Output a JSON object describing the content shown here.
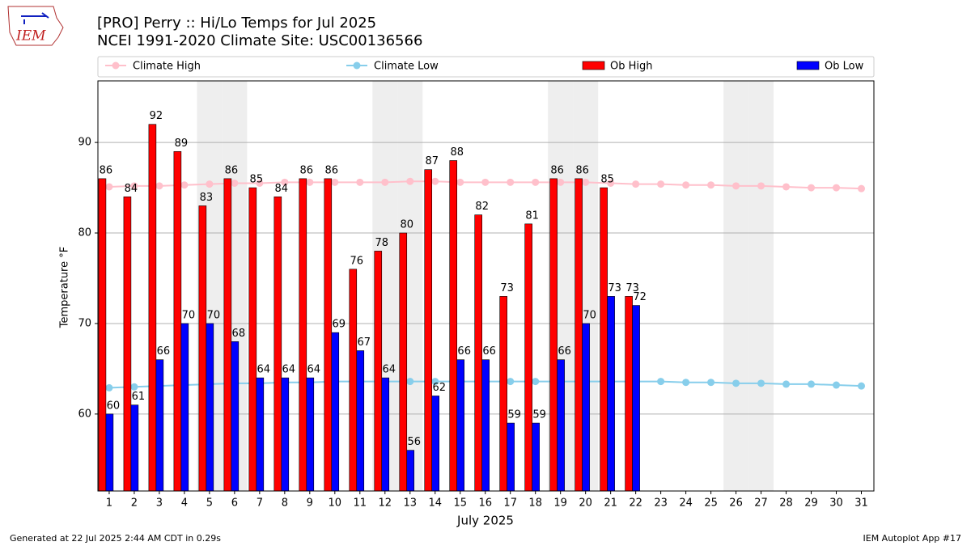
{
  "chart_data": {
    "type": "bar",
    "title": "[PRO] Perry :: Hi/Lo Temps for Jul 2025",
    "subtitle": "NCEI 1991-2020 Climate Site: USC00136566",
    "logo": "IEM",
    "ylabel": "Temperature °F",
    "xlabel": "July 2025",
    "footer_left": "Generated at 22 Jul 2025 2:44 AM CDT in 0.29s",
    "footer_right": "IEM Autoplot App #17",
    "x": [
      1,
      2,
      3,
      4,
      5,
      6,
      7,
      8,
      9,
      10,
      11,
      12,
      13,
      14,
      15,
      16,
      17,
      18,
      19,
      20,
      21,
      22,
      23,
      24,
      25,
      26,
      27,
      28,
      29,
      30,
      31
    ],
    "xlim": [
      0.55,
      31.5
    ],
    "ylim": [
      51.5,
      96.8
    ],
    "yticks": [
      60,
      70,
      80,
      90
    ],
    "grid": true,
    "highlight_days": [
      5,
      6,
      12,
      13,
      19,
      20,
      26,
      27
    ],
    "series": [
      {
        "name": "Climate High",
        "type": "line",
        "color": "#ffc0cb",
        "values": [
          85.1,
          85.2,
          85.2,
          85.3,
          85.4,
          85.5,
          85.5,
          85.6,
          85.6,
          85.6,
          85.6,
          85.6,
          85.7,
          85.7,
          85.6,
          85.6,
          85.6,
          85.6,
          85.6,
          85.6,
          85.5,
          85.4,
          85.4,
          85.3,
          85.3,
          85.2,
          85.2,
          85.1,
          85.0,
          85.0,
          84.9
        ]
      },
      {
        "name": "Climate Low",
        "type": "line",
        "color": "#87ceeb",
        "values": [
          62.9,
          63.0,
          63.1,
          63.2,
          63.3,
          63.4,
          63.4,
          63.5,
          63.5,
          63.6,
          63.6,
          63.6,
          63.6,
          63.6,
          63.6,
          63.6,
          63.6,
          63.6,
          63.6,
          63.6,
          63.6,
          63.6,
          63.6,
          63.5,
          63.5,
          63.4,
          63.4,
          63.3,
          63.3,
          63.2,
          63.1
        ]
      },
      {
        "name": "Ob High",
        "type": "bar",
        "color": "#ff0000",
        "values": [
          86,
          84,
          92,
          89,
          83,
          86,
          85,
          84,
          86,
          86,
          76,
          78,
          80,
          87,
          88,
          82,
          73,
          81,
          86,
          86,
          85,
          73,
          null,
          null,
          null,
          null,
          null,
          null,
          null,
          null,
          null
        ]
      },
      {
        "name": "Ob Low",
        "type": "bar",
        "color": "#0000ff",
        "values": [
          60,
          61,
          66,
          70,
          70,
          68,
          64,
          64,
          64,
          69,
          67,
          64,
          56,
          62,
          66,
          66,
          59,
          59,
          66,
          70,
          73,
          72,
          null,
          null,
          null,
          null,
          null,
          null,
          null,
          null,
          null
        ]
      }
    ]
  }
}
